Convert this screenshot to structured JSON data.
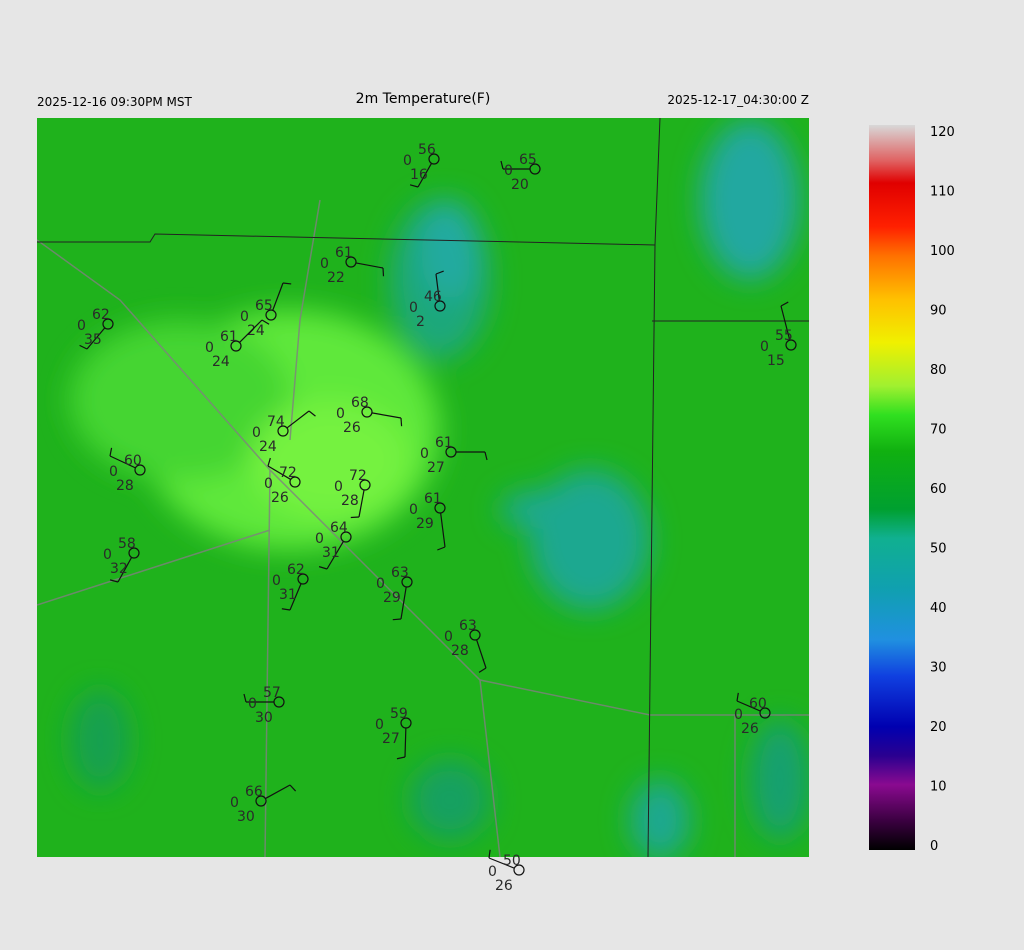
{
  "header": {
    "local_time": "2025-12-16 09:30PM MST",
    "title": "2m Temperature(F)",
    "utc_time": "2025-12-17_04:30:00 Z"
  },
  "stations": [
    {
      "temp": "56",
      "mid": "0",
      "dew": "16"
    },
    {
      "temp": "65",
      "mid": "0",
      "dew": "20"
    },
    {
      "temp": "61",
      "mid": "0",
      "dew": "22"
    },
    {
      "temp": "46",
      "mid": "0",
      "dew": "2"
    },
    {
      "temp": "62",
      "mid": "0",
      "dew": "35"
    },
    {
      "temp": "65",
      "mid": "0",
      "dew": "24"
    },
    {
      "temp": "61",
      "mid": "0",
      "dew": "24"
    },
    {
      "temp": "55",
      "mid": "0",
      "dew": "15"
    },
    {
      "temp": "74",
      "mid": "0",
      "dew": "24"
    },
    {
      "temp": "68",
      "mid": "0",
      "dew": "26"
    },
    {
      "temp": "61",
      "mid": "0",
      "dew": "27"
    },
    {
      "temp": "60",
      "mid": "0",
      "dew": "28"
    },
    {
      "temp": "72",
      "mid": "0",
      "dew": "26"
    },
    {
      "temp": "72",
      "mid": "0",
      "dew": "28"
    },
    {
      "temp": "61",
      "mid": "0",
      "dew": "29"
    },
    {
      "temp": "64",
      "mid": "0",
      "dew": "31"
    },
    {
      "temp": "58",
      "mid": "0",
      "dew": "32"
    },
    {
      "temp": "62",
      "mid": "0",
      "dew": "31"
    },
    {
      "temp": "63",
      "mid": "0",
      "dew": "29"
    },
    {
      "temp": "63",
      "mid": "0",
      "dew": "28"
    },
    {
      "temp": "57",
      "mid": "0",
      "dew": "30"
    },
    {
      "temp": "59",
      "mid": "0",
      "dew": "27"
    },
    {
      "temp": "60",
      "mid": "0",
      "dew": "26"
    },
    {
      "temp": "66",
      "mid": "0",
      "dew": "30"
    },
    {
      "temp": "50",
      "mid": "0",
      "dew": "26"
    }
  ],
  "colorbar": {
    "range": [
      0,
      120
    ],
    "ticks": [
      0,
      10,
      20,
      30,
      40,
      50,
      60,
      70,
      80,
      90,
      100,
      110,
      120
    ]
  }
}
